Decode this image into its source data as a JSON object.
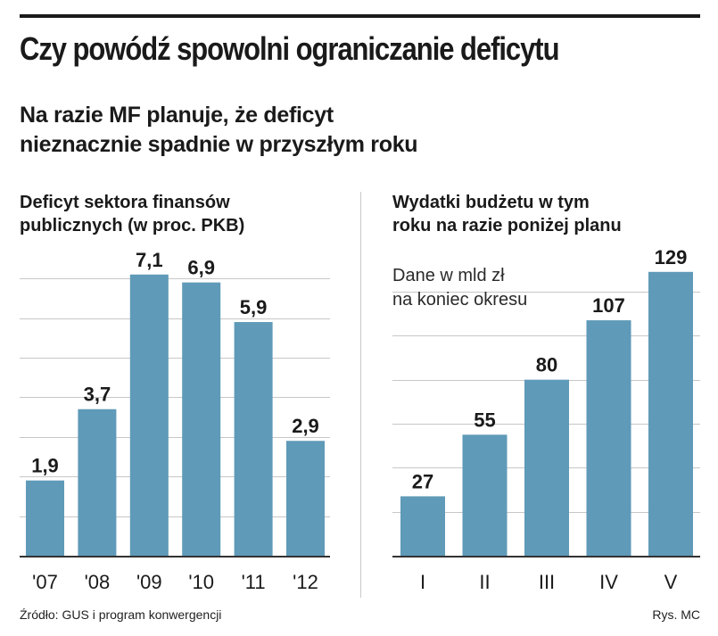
{
  "header": {
    "title": "Czy powódź spowolni ograniczanie deficytu",
    "subtitle_lines": [
      "Na razie MF planuje, że deficyt",
      "nieznacznie spadnie w przyszłym roku"
    ]
  },
  "chart_data": [
    {
      "type": "bar",
      "title_lines": [
        "Deficyt sektora finansów",
        "publicznych (w proc. PKB)"
      ],
      "categories": [
        "'07",
        "'08",
        "'09",
        "'10",
        "'11",
        "'12"
      ],
      "values": [
        1.9,
        3.7,
        7.1,
        6.9,
        5.9,
        2.9
      ],
      "value_labels": [
        "1,9",
        "3,7",
        "7,1",
        "6,9",
        "5,9",
        "2,9"
      ],
      "ylim": [
        0,
        7.5
      ],
      "bar_color": "#5f9ab8"
    },
    {
      "type": "bar",
      "title_lines": [
        "Wydatki budżetu w tym",
        "roku na razie poniżej planu"
      ],
      "note_lines": [
        "Dane w mld zł",
        "na koniec okresu"
      ],
      "categories": [
        "I",
        "II",
        "III",
        "IV",
        "V"
      ],
      "values": [
        27,
        55,
        80,
        107,
        129
      ],
      "value_labels": [
        "27",
        "55",
        "80",
        "107",
        "129"
      ],
      "ylim": [
        0,
        135
      ],
      "bar_color": "#5f9ab8"
    }
  ],
  "footer": {
    "source": "Źródło: GUS i program konwergencji",
    "credit": "Rys. MC"
  }
}
